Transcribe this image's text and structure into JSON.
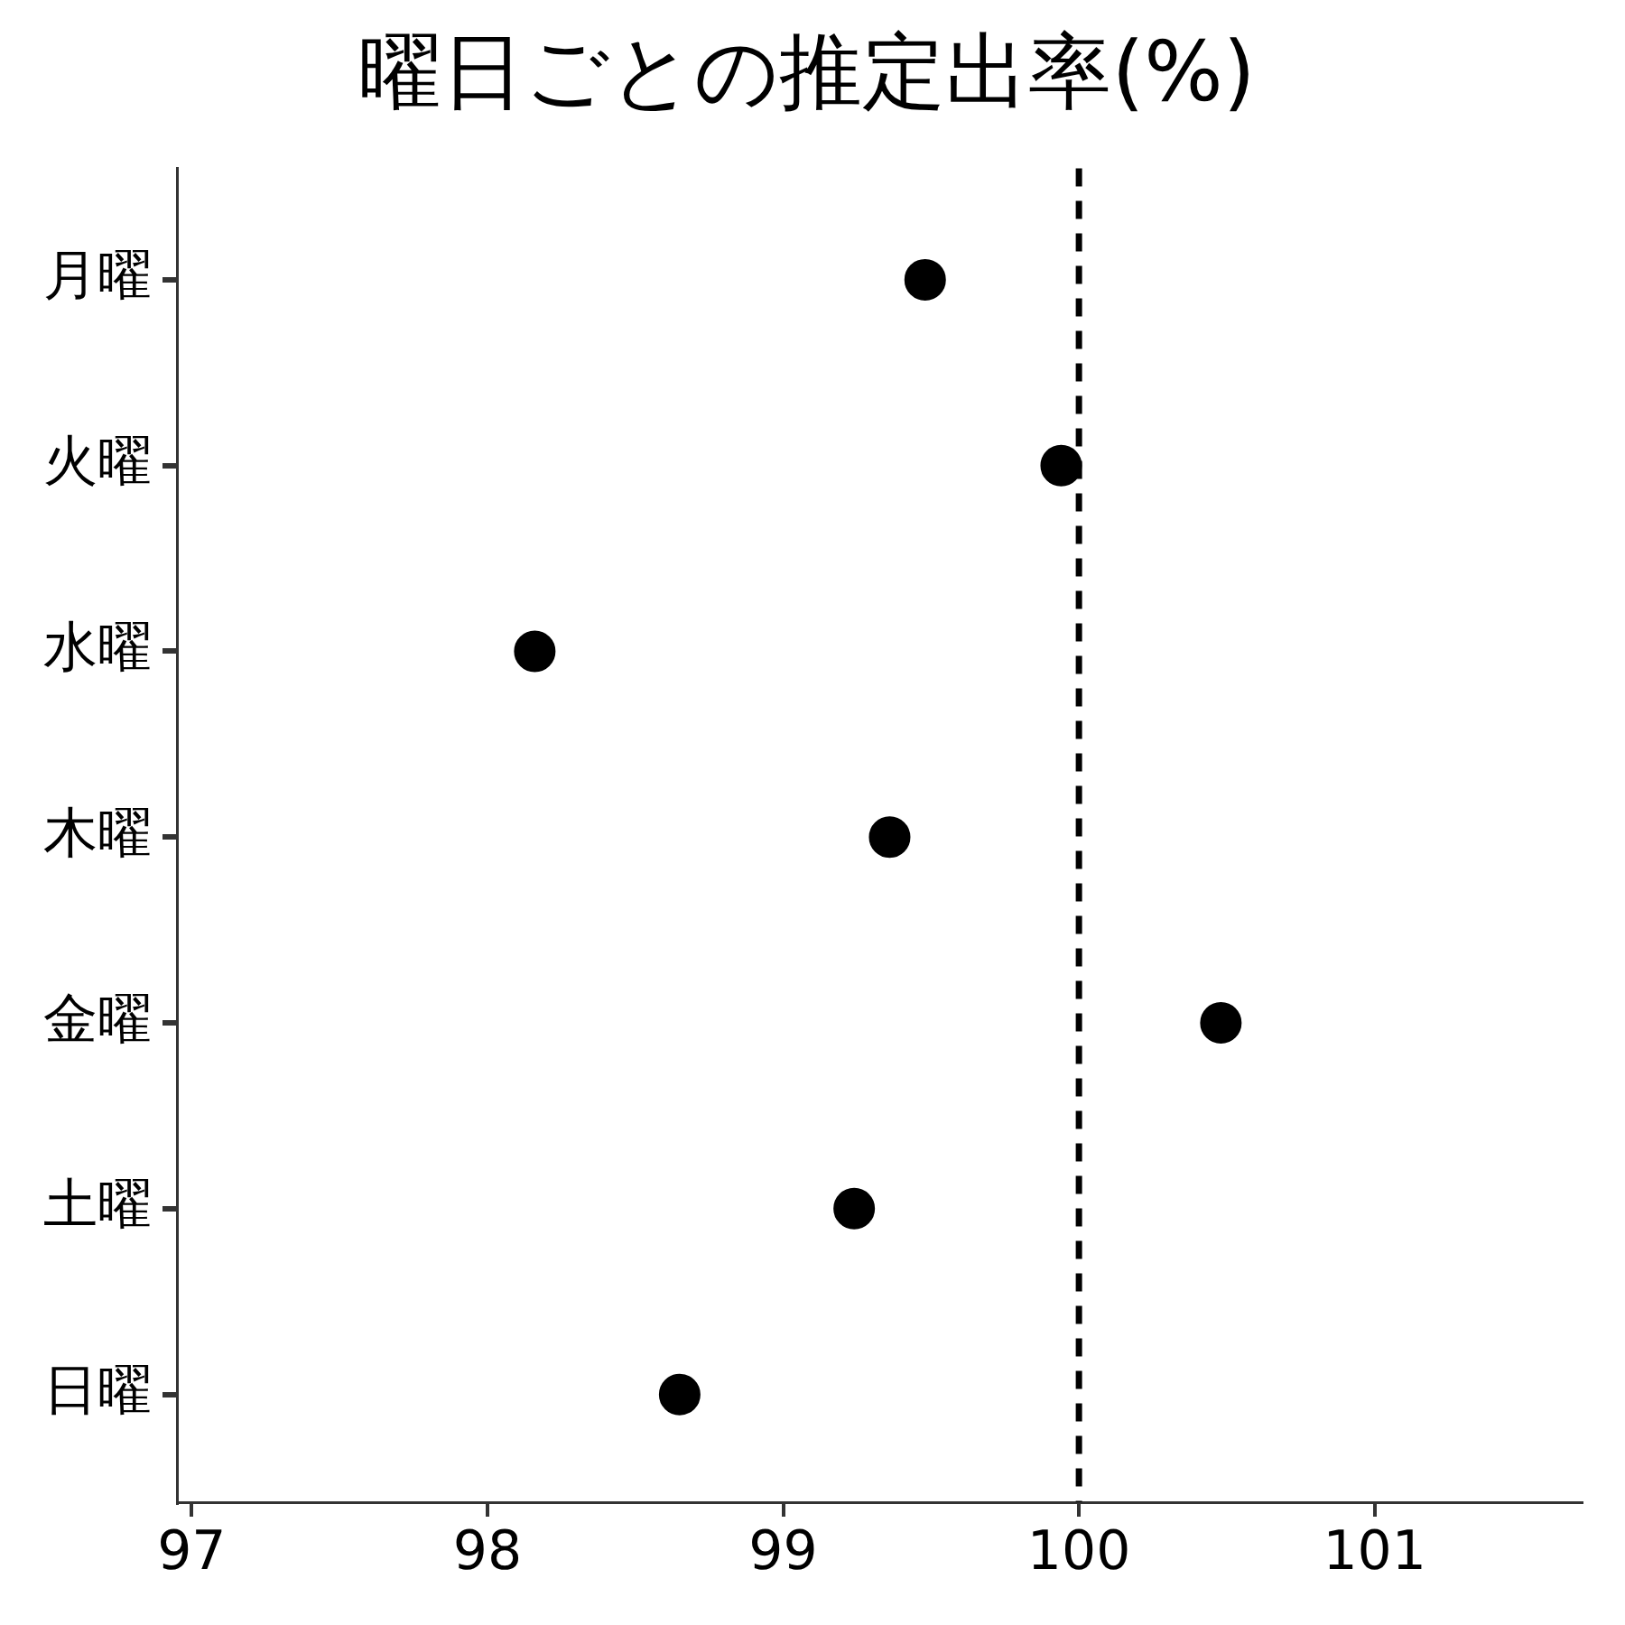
{
  "chart_data": {
    "type": "scatter",
    "title": "曜日ごとの推定出率(%)",
    "orientation": "horizontal",
    "categories": [
      "月曜",
      "火曜",
      "水曜",
      "木曜",
      "金曜",
      "土曜",
      "日曜"
    ],
    "series": [
      {
        "color": "#000000",
        "values": [
          99.48,
          99.94,
          98.16,
          99.36,
          100.48,
          99.24,
          98.65
        ]
      }
    ],
    "xlim": [
      96.95,
      101.7
    ],
    "xticks": [
      97,
      98,
      99,
      100,
      101
    ],
    "ref_lines": [
      {
        "axis": "x",
        "value": 100,
        "color": "#000000",
        "line_style": "dashed"
      }
    ],
    "grid": false,
    "legend": false,
    "marker": "circle"
  }
}
